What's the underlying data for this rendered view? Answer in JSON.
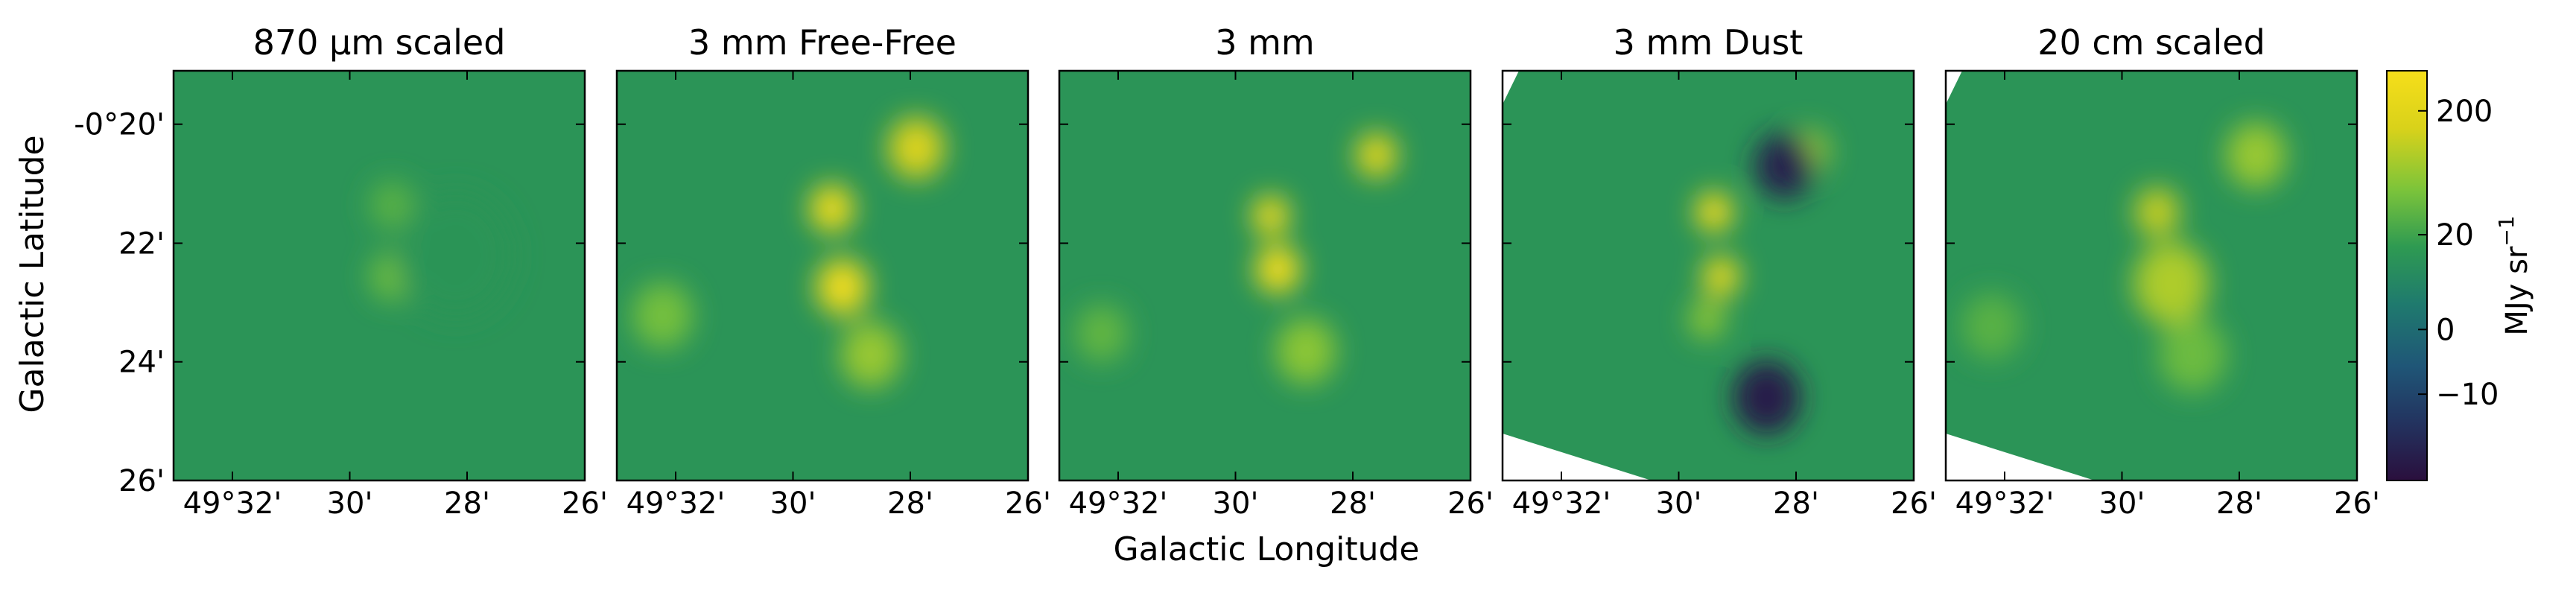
{
  "figure": {
    "xlabel": "Galactic Longitude",
    "ylabel": "Galactic Latitude",
    "colorbar": {
      "label_main": "MJy sr",
      "label_exp": "−1",
      "ticks": [
        "200",
        "20",
        "0",
        "−10"
      ],
      "tick_values": [
        200,
        20,
        0,
        -10
      ],
      "scale": "symlog",
      "range": [
        -60,
        400
      ],
      "colormap": [
        "#2a0f3d",
        "#23335f",
        "#1f5677",
        "#1f7a6e",
        "#2e9a52",
        "#7cc43a",
        "#d9d21a",
        "#f6de1a"
      ]
    }
  },
  "chart_data": [
    {
      "type": "heatmap",
      "title": "870 µm scaled",
      "xlabel": "",
      "ylabel": "Galactic Latitude",
      "xlim": [
        "49°33'",
        "49°26'"
      ],
      "ylim": [
        "-0°26'",
        "-0°19.1'"
      ],
      "xticks": [
        "49°32'",
        "30'",
        "28'",
        "26'"
      ],
      "yticks": [
        "-0°20'",
        "22'",
        "24'",
        "26'"
      ],
      "sources": [
        {
          "l": 49.488,
          "b": -0.376,
          "value": 40,
          "size": 0.6
        },
        {
          "l": 49.488,
          "b": -0.356,
          "value": 30,
          "size": 0.6
        },
        {
          "l": 49.47,
          "b": -0.37,
          "value": 12,
          "size": 2.5
        }
      ]
    },
    {
      "type": "heatmap",
      "title": "3 mm Free-Free",
      "xlabel": "",
      "ylabel": "",
      "xlim": [
        "49°33'",
        "49°26'"
      ],
      "ylim": [
        "-0°26'",
        "-0°19.1'"
      ],
      "xticks": [
        "49°32'",
        "30'",
        "28'",
        "26'"
      ],
      "yticks": [
        "",
        "",
        "",
        ""
      ],
      "sources": [
        {
          "l": 49.489,
          "b": -0.357,
          "value": 300,
          "size": 0.6
        },
        {
          "l": 49.486,
          "b": -0.379,
          "value": 320,
          "size": 0.8
        },
        {
          "l": 49.465,
          "b": -0.34,
          "value": 160,
          "size": 0.9
        },
        {
          "l": 49.478,
          "b": -0.398,
          "value": 70,
          "size": 1.0
        },
        {
          "l": 49.537,
          "b": -0.387,
          "value": 45,
          "size": 1.0
        }
      ]
    },
    {
      "type": "heatmap",
      "title": "3 mm",
      "xlabel": "",
      "ylabel": "",
      "xlim": [
        "49°33'",
        "49°26'"
      ],
      "ylim": [
        "-0°26'",
        "-0°19.1'"
      ],
      "xticks": [
        "49°32'",
        "30'",
        "28'",
        "26'"
      ],
      "yticks": [
        "",
        "",
        "",
        ""
      ],
      "sources": [
        {
          "l": 49.49,
          "b": -0.359,
          "value": 320,
          "size": 0.4
        },
        {
          "l": 49.488,
          "b": -0.374,
          "value": 380,
          "size": 0.6
        },
        {
          "l": 49.46,
          "b": -0.342,
          "value": 220,
          "size": 0.5
        },
        {
          "l": 49.48,
          "b": -0.397,
          "value": 60,
          "size": 1.0
        },
        {
          "l": 49.538,
          "b": -0.392,
          "value": 35,
          "size": 0.8
        }
      ]
    },
    {
      "type": "heatmap",
      "title": "3 mm Dust",
      "xlabel": "",
      "ylabel": "",
      "xlim": [
        "49°33'",
        "49°26'"
      ],
      "ylim": [
        "-0°26'",
        "-0°19.1'"
      ],
      "xticks": [
        "49°32'",
        "30'",
        "28'",
        "26'"
      ],
      "yticks": [
        "",
        "",
        "",
        ""
      ],
      "sources": [
        {
          "l": 49.49,
          "b": -0.358,
          "value": 380,
          "size": 0.4
        },
        {
          "l": 49.488,
          "b": -0.376,
          "value": 300,
          "size": 0.4
        },
        {
          "l": 49.492,
          "b": -0.388,
          "value": 60,
          "size": 0.4
        },
        {
          "l": 49.463,
          "b": -0.341,
          "value": 70,
          "size": 0.5
        },
        {
          "l": 49.475,
          "b": -0.41,
          "value": -40,
          "size": 1.2
        },
        {
          "l": 49.47,
          "b": -0.345,
          "value": -35,
          "size": 1.0
        }
      ]
    },
    {
      "type": "heatmap",
      "title": "20 cm scaled",
      "xlabel": "",
      "ylabel": "",
      "xlim": [
        "49°33'",
        "49°26'"
      ],
      "ylim": [
        "-0°26'",
        "-0°19.1'"
      ],
      "xticks": [
        "49°32'",
        "30'",
        "28'",
        "26'"
      ],
      "yticks": [
        "",
        "",
        "",
        ""
      ],
      "sources": [
        {
          "l": 49.49,
          "b": -0.358,
          "value": 120,
          "size": 0.6
        },
        {
          "l": 49.486,
          "b": -0.378,
          "value": 90,
          "size": 1.4
        },
        {
          "l": 49.462,
          "b": -0.342,
          "value": 70,
          "size": 1.0
        },
        {
          "l": 49.48,
          "b": -0.398,
          "value": 40,
          "size": 1.2
        },
        {
          "l": 49.537,
          "b": -0.39,
          "value": 30,
          "size": 1.0
        }
      ]
    }
  ]
}
